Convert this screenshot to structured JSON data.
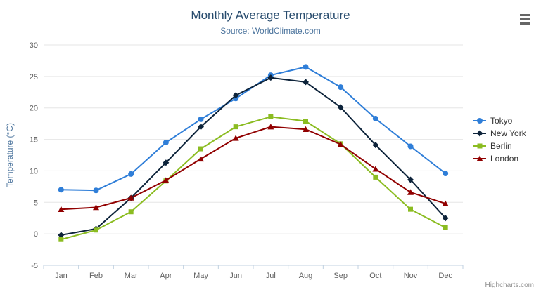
{
  "chart_data": {
    "type": "line",
    "title": "Monthly Average Temperature",
    "subtitle": "Source: WorldClimate.com",
    "xlabel": "",
    "ylabel": "Temperature (°C)",
    "ylim": [
      -5,
      30
    ],
    "y_ticks": [
      -5,
      0,
      5,
      10,
      15,
      20,
      25,
      30
    ],
    "categories": [
      "Jan",
      "Feb",
      "Mar",
      "Apr",
      "May",
      "Jun",
      "Jul",
      "Aug",
      "Sep",
      "Oct",
      "Nov",
      "Dec"
    ],
    "grid": true,
    "legend_position": "right",
    "series": [
      {
        "name": "Tokyo",
        "color": "#2f7ed8",
        "marker": "circle",
        "values": [
          7.0,
          6.9,
          9.5,
          14.5,
          18.2,
          21.5,
          25.2,
          26.5,
          23.3,
          18.3,
          13.9,
          9.6
        ]
      },
      {
        "name": "New York",
        "color": "#0d233a",
        "marker": "diamond",
        "values": [
          -0.2,
          0.8,
          5.7,
          11.3,
          17.0,
          22.0,
          24.8,
          24.1,
          20.1,
          14.1,
          8.6,
          2.5
        ]
      },
      {
        "name": "Berlin",
        "color": "#8bbc21",
        "marker": "square",
        "values": [
          -0.9,
          0.6,
          3.5,
          8.4,
          13.5,
          17.0,
          18.6,
          17.9,
          14.3,
          9.0,
          3.9,
          1.0
        ]
      },
      {
        "name": "London",
        "color": "#910000",
        "marker": "triangle",
        "values": [
          3.9,
          4.2,
          5.7,
          8.5,
          11.9,
          15.2,
          17.0,
          16.6,
          14.2,
          10.3,
          6.6,
          4.8
        ]
      }
    ],
    "colors": {
      "title": "#274b6d",
      "subtitle": "#4d759e",
      "axis_labels": "#606060",
      "gridline": "#e6e6e6",
      "axis_line": "#c0d0e0"
    }
  },
  "icons": {
    "context_menu_icon": "hamburger"
  },
  "credits": {
    "text": "Highcharts.com"
  }
}
